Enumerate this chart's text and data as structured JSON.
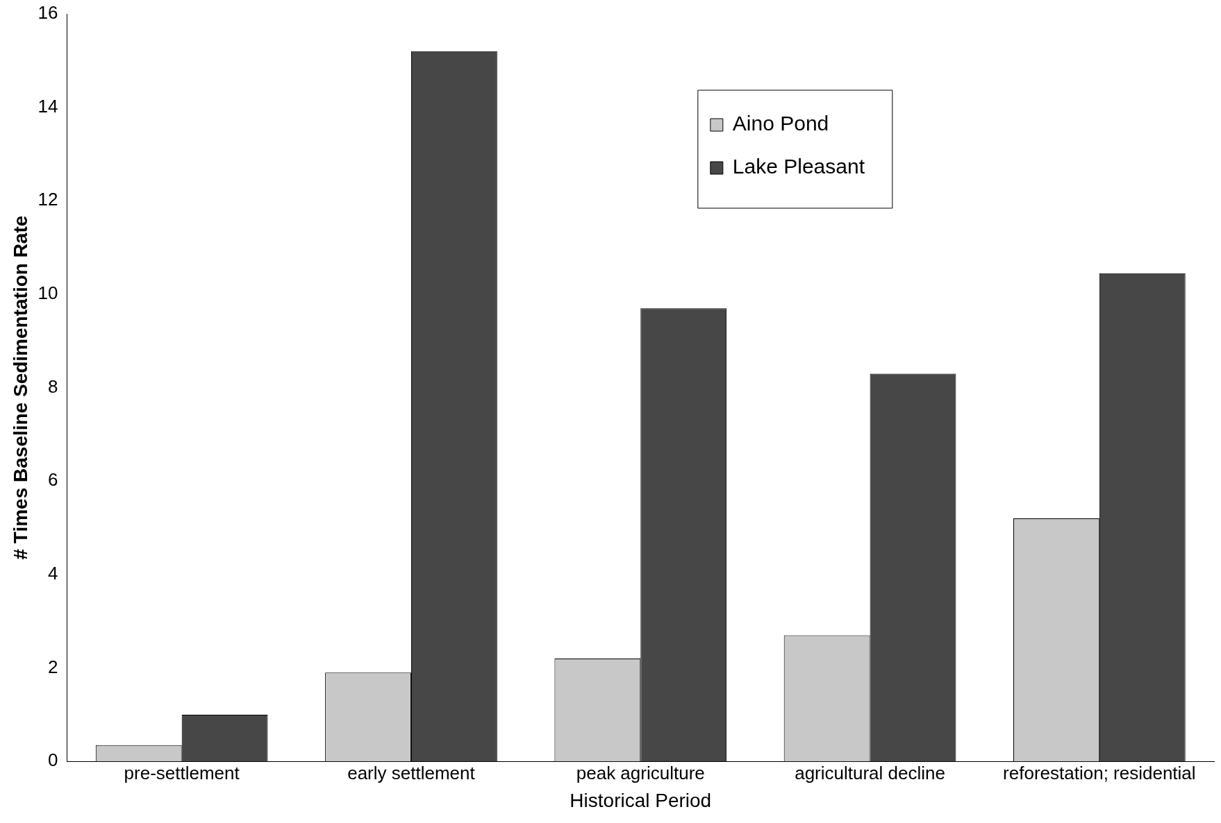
{
  "chart_data": {
    "type": "bar",
    "xlabel": "Historical Period",
    "ylabel": "# Times Baseline Sedimentation Rate",
    "categories": [
      "pre-settlement",
      "early settlement",
      "peak agriculture",
      "agricultural decline",
      "reforestation; residential"
    ],
    "series": [
      {
        "name": "Aino Pond",
        "color": "#c8c8c8",
        "values": [
          0.35,
          1.9,
          2.2,
          2.7,
          5.2
        ]
      },
      {
        "name": "Lake Pleasant",
        "color": "#474747",
        "values": [
          1.0,
          15.2,
          9.7,
          8.3,
          10.45
        ]
      }
    ],
    "ylim": [
      0,
      16
    ],
    "yticks": [
      0,
      2,
      4,
      6,
      8,
      10,
      12,
      14,
      16
    ],
    "grid": false,
    "legend": "top right"
  }
}
